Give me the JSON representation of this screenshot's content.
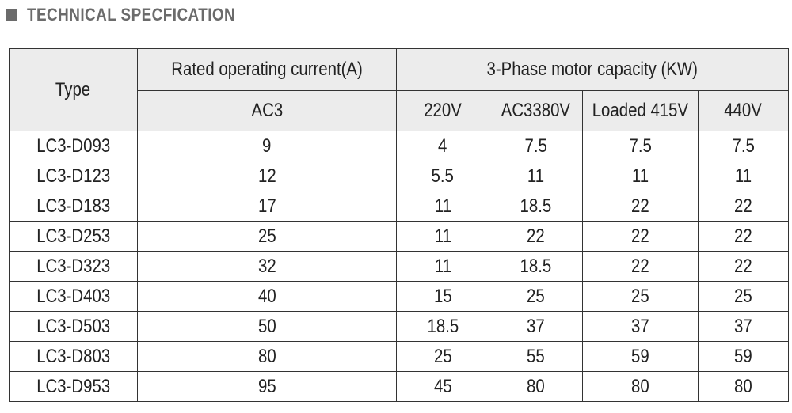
{
  "heading": {
    "title": "TECHNICAL SPECFICATION"
  },
  "table": {
    "header": {
      "type": "Type",
      "rated_group": "Rated operating current(A)",
      "motor_group": "3-Phase motor capacity (KW)",
      "ac3": "AC3",
      "v220": "220V",
      "v380": "AC3380V",
      "v415": "Loaded 415V",
      "v440": "440V"
    },
    "rows": [
      {
        "type": "LC3-D093",
        "ac3": "9",
        "v220": "4",
        "v380": "7.5",
        "v415": "7.5",
        "v440": "7.5"
      },
      {
        "type": "LC3-D123",
        "ac3": "12",
        "v220": "5.5",
        "v380": "11",
        "v415": "11",
        "v440": "11"
      },
      {
        "type": "LC3-D183",
        "ac3": "17",
        "v220": "11",
        "v380": "18.5",
        "v415": "22",
        "v440": "22"
      },
      {
        "type": "LC3-D253",
        "ac3": "25",
        "v220": "11",
        "v380": "22",
        "v415": "22",
        "v440": "22"
      },
      {
        "type": "LC3-D323",
        "ac3": "32",
        "v220": "11",
        "v380": "18.5",
        "v415": "22",
        "v440": "22"
      },
      {
        "type": "LC3-D403",
        "ac3": "40",
        "v220": "15",
        "v380": "25",
        "v415": "25",
        "v440": "25"
      },
      {
        "type": "LC3-D503",
        "ac3": "50",
        "v220": "18.5",
        "v380": "37",
        "v415": "37",
        "v440": "37"
      },
      {
        "type": "LC3-D803",
        "ac3": "80",
        "v220": "25",
        "v380": "55",
        "v415": "59",
        "v440": "59"
      },
      {
        "type": "LC3-D953",
        "ac3": "95",
        "v220": "45",
        "v380": "80",
        "v415": "80",
        "v440": "80"
      }
    ]
  }
}
